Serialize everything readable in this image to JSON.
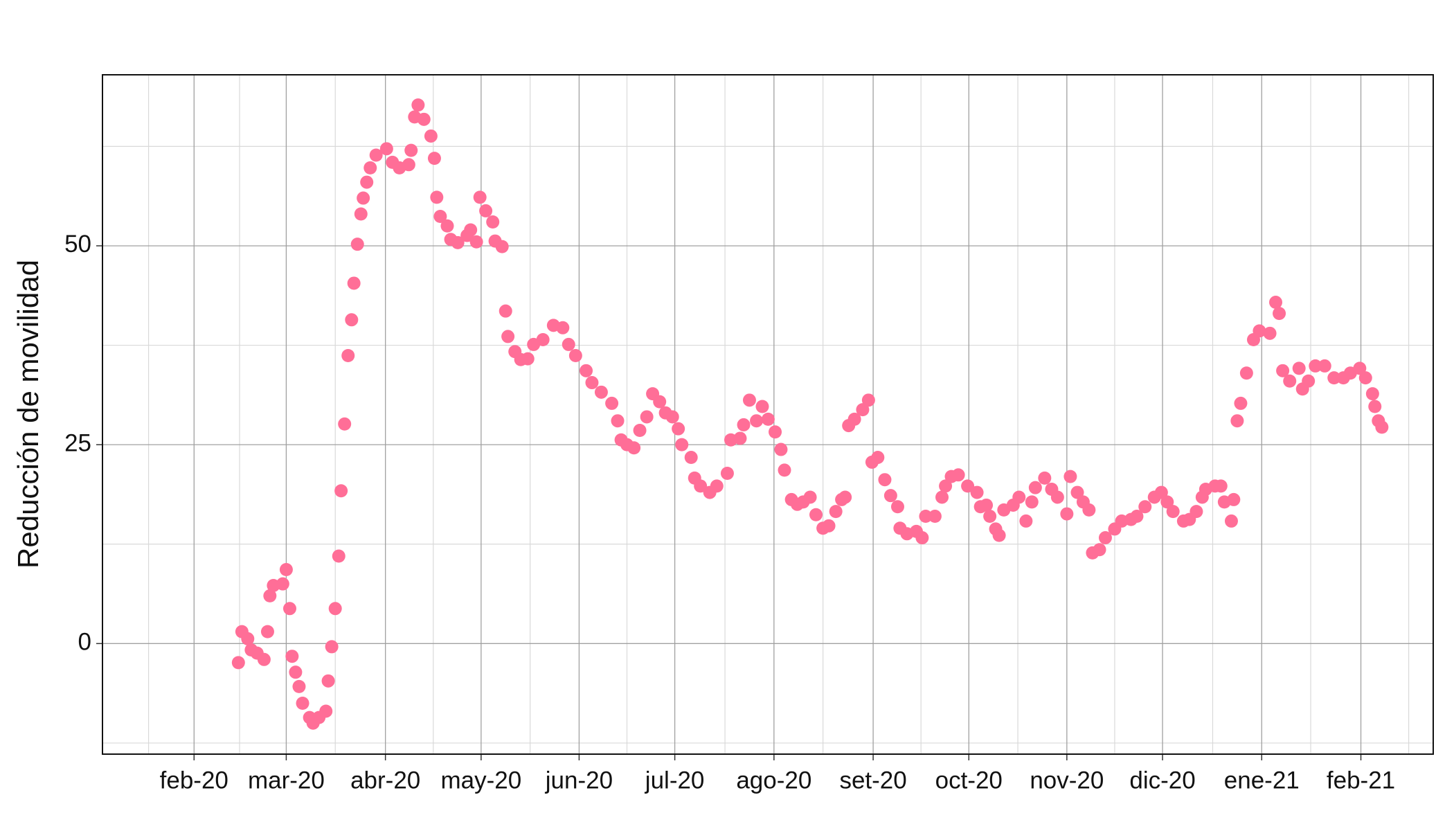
{
  "chart_data": {
    "type": "scatter",
    "y_label": "Reducción de movilidad",
    "x": [
      2020.123,
      2020.126,
      2020.131,
      2020.134,
      2020.139,
      2020.145,
      2020.148,
      2020.15,
      2020.153,
      2020.161,
      2020.164,
      2020.167,
      2020.169,
      2020.172,
      2020.175,
      2020.178,
      2020.184,
      2020.187,
      2020.192,
      2020.198,
      2020.2,
      2020.203,
      2020.206,
      2020.209,
      2020.211,
      2020.214,
      2020.217,
      2020.22,
      2020.222,
      2020.225,
      2020.228,
      2020.23,
      2020.233,
      2020.236,
      2020.241,
      2020.25,
      2020.255,
      2020.261,
      2020.269,
      2020.271,
      2020.274,
      2020.277,
      2020.282,
      2020.288,
      2020.291,
      2020.293,
      2020.296,
      2020.302,
      2020.305,
      2020.311,
      2020.319,
      2020.322,
      2020.327,
      2020.33,
      2020.335,
      2020.341,
      2020.343,
      2020.349,
      2020.352,
      2020.354,
      2020.36,
      2020.365,
      2020.371,
      2020.376,
      2020.384,
      2020.393,
      2020.401,
      2020.406,
      2020.412,
      2020.421,
      2020.426,
      2020.434,
      2020.443,
      2020.448,
      2020.451,
      2020.456,
      2020.462,
      2020.467,
      2020.473,
      2020.478,
      2020.484,
      2020.489,
      2020.495,
      2020.5,
      2020.503,
      2020.511,
      2020.514,
      2020.519,
      2020.527,
      2020.533,
      2020.542,
      2020.545,
      2020.553,
      2020.556,
      2020.561,
      2020.567,
      2020.572,
      2020.577,
      2020.583,
      2020.588,
      2020.591,
      2020.597,
      2020.602,
      2020.607,
      2020.613,
      2020.618,
      2020.624,
      2020.629,
      2020.635,
      2020.64,
      2020.643,
      2020.646,
      2020.651,
      2020.658,
      2020.663,
      2020.666,
      2020.671,
      2020.677,
      2020.682,
      2020.688,
      2020.69,
      2020.696,
      2020.704,
      2020.709,
      2020.712,
      2020.72,
      2020.726,
      2020.729,
      2020.734,
      2020.74,
      2020.748,
      2020.756,
      2020.759,
      2020.764,
      2020.767,
      2020.772,
      2020.775,
      2020.779,
      2020.787,
      2020.792,
      2020.798,
      2020.803,
      2020.806,
      2020.814,
      2020.82,
      2020.825,
      2020.833,
      2020.836,
      2020.842,
      2020.847,
      2020.852,
      2020.855,
      2020.861,
      2020.866,
      2020.874,
      2020.88,
      2020.888,
      2020.893,
      2020.9,
      2020.908,
      2020.914,
      2020.919,
      2020.924,
      2020.933,
      2020.938,
      2020.944,
      2020.949,
      2020.952,
      2020.96,
      2020.965,
      2020.968,
      2020.974,
      2020.976,
      2020.979,
      2020.982,
      2020.987,
      2020.993,
      2020.998,
      2021.007,
      2021.012,
      2021.015,
      2021.018,
      2021.024,
      2021.032,
      2021.035,
      2021.04,
      2021.046,
      2021.054,
      2021.062,
      2021.07,
      2021.076,
      2021.084,
      2021.089,
      2021.095,
      2021.097,
      2021.1,
      2021.103
    ],
    "series": [
      {
        "color": "#ff6e97",
        "values": [
          -2.4,
          1.5,
          0.6,
          -0.8,
          -1.2,
          -2.0,
          1.5,
          6.0,
          7.3,
          7.5,
          9.3,
          4.4,
          -1.6,
          -3.6,
          -5.4,
          -7.5,
          -9.3,
          -10,
          -9.3,
          -8.5,
          -4.7,
          -0.4,
          4.4,
          11,
          19.2,
          27.6,
          36.2,
          40.7,
          45.3,
          50.2,
          54,
          56,
          58,
          59.8,
          61.4,
          62.2,
          60.5,
          59.8,
          60.2,
          62,
          66.2,
          67.7,
          65.9,
          63.8,
          61,
          56.1,
          53.7,
          52.5,
          50.8,
          50.4,
          51.3,
          52,
          50.5,
          56.1,
          54.4,
          53,
          50.6,
          49.9,
          41.8,
          38.6,
          36.7,
          35.7,
          35.8,
          37.6,
          38.2,
          40,
          39.7,
          37.6,
          36.2,
          34.3,
          32.8,
          31.6,
          30.2,
          28,
          25.6,
          25,
          24.6,
          26.8,
          28.5,
          31.4,
          30.4,
          29,
          28.5,
          27,
          25,
          23.4,
          20.8,
          19.8,
          19,
          19.8,
          21.4,
          25.6,
          25.8,
          27.5,
          30.6,
          28,
          29.8,
          28.2,
          26.6,
          24.4,
          21.8,
          18.1,
          17.5,
          17.8,
          18.4,
          16.2,
          14.5,
          14.8,
          16.6,
          18.1,
          18.4,
          27.4,
          28.2,
          29.4,
          30.6,
          22.8,
          23.4,
          20.6,
          18.6,
          17.2,
          14.5,
          13.8,
          14.1,
          13.3,
          16,
          16,
          18.4,
          19.8,
          21,
          21.2,
          19.8,
          19,
          17.2,
          17.4,
          16,
          14.4,
          13.6,
          16.8,
          17.4,
          18.4,
          15.4,
          17.8,
          19.6,
          20.8,
          19.4,
          18.4,
          16.3,
          21,
          19,
          17.8,
          16.8,
          11.4,
          11.8,
          13.3,
          14.4,
          15.4,
          15.6,
          16,
          17.2,
          18.4,
          19,
          17.8,
          16.6,
          15.4,
          15.6,
          16.6,
          18.4,
          19.4,
          19.8,
          19.8,
          17.8,
          15.4,
          18.1,
          28,
          30.2,
          34,
          38.2,
          39.3,
          39,
          42.9,
          41.5,
          34.3,
          33,
          34.6,
          32,
          33,
          34.9,
          34.9,
          33.4,
          33.4,
          34,
          34.6,
          33.4,
          31.4,
          29.8,
          28,
          27.2
        ]
      }
    ],
    "xlim": [
      2020.0065,
      2021.147
    ],
    "xticks": [
      {
        "value": 2020.085,
        "label": "feb-20"
      },
      {
        "value": 2020.164,
        "label": "mar-20"
      },
      {
        "value": 2020.249,
        "label": "abr-20"
      },
      {
        "value": 2020.331,
        "label": "may-20"
      },
      {
        "value": 2020.415,
        "label": "jun-20"
      },
      {
        "value": 2020.497,
        "label": "jul-20"
      },
      {
        "value": 2020.582,
        "label": "ago-20"
      },
      {
        "value": 2020.667,
        "label": "set-20"
      },
      {
        "value": 2020.749,
        "label": "oct-20"
      },
      {
        "value": 2020.833,
        "label": "nov-20"
      },
      {
        "value": 2020.915,
        "label": "dic-20"
      },
      {
        "value": 2021.0,
        "label": "ene-21"
      },
      {
        "value": 2021.085,
        "label": "feb-21"
      }
    ],
    "minor_xticks": [
      2020.046,
      2020.124,
      2020.206,
      2020.29,
      2020.373,
      2020.456,
      2020.54,
      2020.624,
      2020.708,
      2020.791,
      2020.874,
      2020.958,
      2021.042,
      2021.126
    ],
    "ylim": [
      -13.9,
      71.5
    ],
    "yticks": [
      0,
      25,
      50
    ],
    "minor_yticks": [
      -12.5,
      12.5,
      37.5,
      62.5
    ],
    "grid": true
  }
}
